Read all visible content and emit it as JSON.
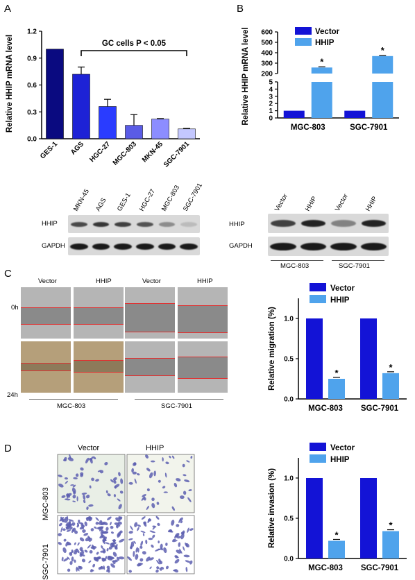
{
  "panels": {
    "a": "A",
    "b": "B",
    "c": "C",
    "d": "D"
  },
  "chart_data": [
    {
      "type": "bar",
      "ylabel": "Relative HHIP mRNA level",
      "categories": [
        "GES-1",
        "AGS",
        "HGC-27",
        "MGC-803",
        "MKN-45",
        "SGC-7901"
      ],
      "values": [
        1.0,
        0.72,
        0.36,
        0.15,
        0.22,
        0.11
      ],
      "errors": [
        0,
        0.08,
        0.08,
        0.12,
        0.005,
        0.005
      ],
      "colors": [
        "#0a0a80",
        "#1d22d6",
        "#2a3cff",
        "#5a5ce6",
        "#8c8dff",
        "#c4c8ff"
      ],
      "yticks": [
        "0.0",
        "0.3",
        "0.6",
        "0.9",
        "1.2"
      ],
      "ylim": [
        0,
        1.2
      ],
      "annotation": "GC cells P < 0.05"
    },
    {
      "type": "bar",
      "ylabel": "Relative HHIP mRNA level",
      "categories": [
        "MGC-803",
        "SGC-7901"
      ],
      "series": [
        {
          "name": "Vector",
          "color": "#1313d6",
          "values": [
            1,
            1
          ]
        },
        {
          "name": "HHIP",
          "color": "#4fa3ec",
          "values": [
            258,
            368
          ]
        }
      ],
      "yticks_lower": [
        "0",
        "1",
        "2",
        "3",
        "4",
        "5"
      ],
      "yticks_upper": [
        "200",
        "300",
        "400",
        "500",
        "600"
      ],
      "axis_break": [
        5,
        200
      ],
      "significance": "*"
    },
    {
      "type": "bar",
      "ylabel": "Relative migration (%)",
      "categories": [
        "MGC-803",
        "SGC-7901"
      ],
      "series": [
        {
          "name": "Vector",
          "color": "#1313d6",
          "values": [
            1.0,
            1.0
          ]
        },
        {
          "name": "HHIP",
          "color": "#4fa3ec",
          "values": [
            0.25,
            0.32
          ]
        }
      ],
      "yticks": [
        "0.0",
        "0.5",
        "1.0"
      ],
      "ylim": [
        0,
        1.25
      ],
      "significance": "*"
    },
    {
      "type": "bar",
      "ylabel": "Relative invasion (%)",
      "categories": [
        "MGC-803",
        "SGC-7901"
      ],
      "series": [
        {
          "name": "Vector",
          "color": "#1313d6",
          "values": [
            1.0,
            1.0
          ]
        },
        {
          "name": "HHIP",
          "color": "#4fa3ec",
          "values": [
            0.22,
            0.34
          ]
        }
      ],
      "yticks": [
        "0.0",
        "0.5",
        "1.0"
      ],
      "ylim": [
        0,
        1.25
      ],
      "significance": "*"
    }
  ],
  "blot_a": {
    "lanes": [
      "MKN-45",
      "AGS",
      "GES-1",
      "HGC-27",
      "MGC-803",
      "SGC-7901"
    ],
    "rows": [
      "HHIP",
      "GAPDH"
    ]
  },
  "blot_b": {
    "lanes": [
      "Vector",
      "HHIP",
      "Vector",
      "HHIP"
    ],
    "rows": [
      "HHIP",
      "GAPDH"
    ],
    "groups": [
      "MGC-803",
      "SGC-7901"
    ]
  },
  "scratch": {
    "columns": [
      "Vector",
      "HHIP",
      "Vector",
      "HHIP"
    ],
    "rows": [
      "0h",
      "24h"
    ],
    "groups": [
      "MGC-803",
      "SGC-7901"
    ]
  },
  "transwell": {
    "columns": [
      "Vector",
      "HHIP"
    ],
    "rows": [
      "MGC-803",
      "SGC-7901"
    ]
  }
}
